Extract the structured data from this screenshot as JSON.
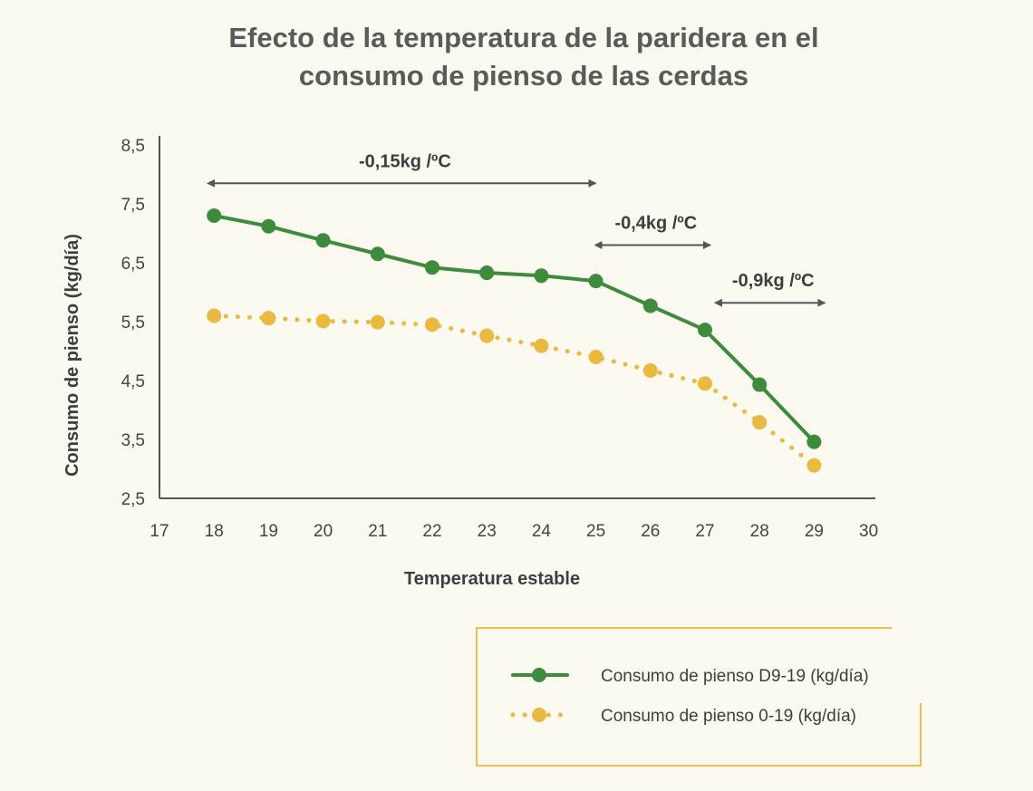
{
  "chart_data": {
    "type": "line",
    "title_lines": [
      "Efecto de la temperatura de la paridera en el",
      "consumo de pienso de las cerdas"
    ],
    "xlabel": "Temperatura estable",
    "ylabel": "Consumo de pienso (kg/día)",
    "xlim": [
      17,
      30
    ],
    "ylim": [
      2.5,
      8.5
    ],
    "x_ticks": [
      17,
      18,
      19,
      20,
      21,
      22,
      23,
      24,
      25,
      26,
      27,
      28,
      29,
      30
    ],
    "y_ticks": [
      2.5,
      3.5,
      4.5,
      5.5,
      6.5,
      7.5,
      8.5
    ],
    "y_tick_labels": [
      "2,5",
      "3,5",
      "4,5",
      "5,5",
      "6,5",
      "7,5",
      "8,5"
    ],
    "grid": false,
    "series": [
      {
        "name": "Consumo de pienso  D9-19 (kg/día)",
        "style": "solid",
        "color": "#3d8b3d",
        "x": [
          18,
          19,
          20,
          21,
          22,
          23,
          24,
          25,
          26,
          27,
          28,
          29
        ],
        "values": [
          7.3,
          7.12,
          6.88,
          6.65,
          6.42,
          6.33,
          6.28,
          6.19,
          5.77,
          5.36,
          4.43,
          3.46
        ]
      },
      {
        "name": "Consumo de pienso  0-19 (kg/día)",
        "style": "dotted",
        "color": "#e9b940",
        "x": [
          18,
          19,
          20,
          21,
          22,
          23,
          24,
          25,
          26,
          27,
          28,
          29
        ],
        "values": [
          5.6,
          5.56,
          5.51,
          5.49,
          5.45,
          5.26,
          5.09,
          4.9,
          4.67,
          4.45,
          3.79,
          3.06
        ]
      }
    ],
    "annotations": [
      {
        "text": "-0,15kg /ºC",
        "x_from": 18,
        "x_to": 25,
        "y": 7.85
      },
      {
        "text": "-0,4kg /ºC",
        "x_from": 25.1,
        "x_to": 27.1,
        "y": 6.8
      },
      {
        "text": "-0,9kg /ºC",
        "x_from": 27.3,
        "x_to": 29.2,
        "y": 5.82
      }
    ],
    "legend_position": "bottom-right"
  }
}
